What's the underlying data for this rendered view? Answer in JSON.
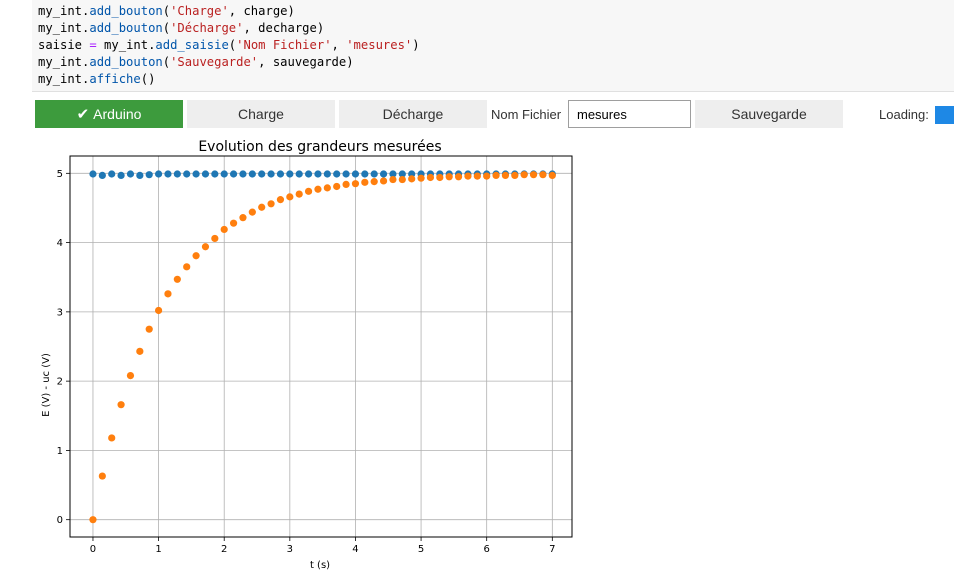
{
  "code": {
    "lines": [
      [
        {
          "t": "my_int."
        },
        {
          "t": "add_bouton",
          "c": "m"
        },
        {
          "t": "("
        },
        {
          "t": "'Charge'",
          "c": "s"
        },
        {
          "t": ", charge)"
        }
      ],
      [
        {
          "t": "my_int."
        },
        {
          "t": "add_bouton",
          "c": "m"
        },
        {
          "t": "("
        },
        {
          "t": "'Décharge'",
          "c": "s"
        },
        {
          "t": ", decharge)"
        }
      ],
      [
        {
          "t": "saisie "
        },
        {
          "t": "=",
          "c": "o"
        },
        {
          "t": " my_int."
        },
        {
          "t": "add_saisie",
          "c": "m"
        },
        {
          "t": "("
        },
        {
          "t": "'Nom Fichier'",
          "c": "s"
        },
        {
          "t": ", "
        },
        {
          "t": "'mesures'",
          "c": "s"
        },
        {
          "t": ")"
        }
      ],
      [
        {
          "t": "my_int."
        },
        {
          "t": "add_bouton",
          "c": "m"
        },
        {
          "t": "("
        },
        {
          "t": "'Sauvegarde'",
          "c": "s"
        },
        {
          "t": ", sauvegarde)"
        }
      ],
      [
        {
          "t": "my_int."
        },
        {
          "t": "affiche",
          "c": "m"
        },
        {
          "t": "()"
        }
      ]
    ]
  },
  "toolbar": {
    "arduino_label": "Arduino",
    "charge_label": "Charge",
    "decharge_label": "Décharge",
    "filename_label": "Nom Fichier",
    "filename_value": "mesures",
    "sauvegarde_label": "Sauvegarde",
    "loading_label": "Loading:"
  },
  "colors": {
    "green": "#3d9b3d",
    "series1": "#1f77b4",
    "series2": "#ff7f0e",
    "loading": "#1e88e5"
  },
  "chart_data": {
    "type": "scatter",
    "title": "Evolution des grandeurs mesurées",
    "xlabel": "t (s)",
    "ylabel": "E (V) - uc (V)",
    "xlim": [
      -0.35,
      7.3
    ],
    "ylim": [
      -0.25,
      5.25
    ],
    "xticks": [
      0,
      1,
      2,
      3,
      4,
      5,
      6,
      7
    ],
    "yticks": [
      0,
      1,
      2,
      3,
      4,
      5
    ],
    "grid": true,
    "series": [
      {
        "color": "#1f77b4",
        "x": [
          0,
          0.142857,
          0.285714,
          0.428571,
          0.571429,
          0.714286,
          0.857143,
          1,
          1.142857,
          1.285714,
          1.428571,
          1.571429,
          1.714286,
          1.857143,
          2,
          2.142857,
          2.285714,
          2.428571,
          2.571429,
          2.714286,
          2.857143,
          3,
          3.142857,
          3.285714,
          3.428571,
          3.571429,
          3.714286,
          3.857143,
          4,
          4.142857,
          4.285714,
          4.428571,
          4.571429,
          4.714286,
          4.857143,
          5,
          5.142857,
          5.285714,
          5.428571,
          5.571429,
          5.714286,
          5.857143,
          6,
          6.142857,
          6.285714,
          6.428571,
          6.571429,
          6.714286,
          6.857143,
          7
        ],
        "y": [
          4.99,
          4.97,
          4.99,
          4.97,
          4.99,
          4.97,
          4.98,
          4.99,
          4.99,
          4.99,
          4.99,
          4.99,
          4.99,
          4.99,
          4.99,
          4.99,
          4.99,
          4.99,
          4.99,
          4.99,
          4.99,
          4.99,
          4.99,
          4.99,
          4.99,
          4.99,
          4.99,
          4.99,
          4.99,
          4.99,
          4.99,
          4.99,
          4.99,
          4.99,
          4.99,
          4.99,
          4.99,
          4.99,
          4.99,
          4.99,
          4.99,
          4.99,
          4.99,
          4.99,
          4.99,
          4.99,
          4.99,
          4.99,
          4.99,
          4.99
        ]
      },
      {
        "color": "#ff7f0e",
        "x": [
          0,
          0.142857,
          0.285714,
          0.428571,
          0.571429,
          0.714286,
          0.857143,
          1,
          1.142857,
          1.285714,
          1.428571,
          1.571429,
          1.714286,
          1.857143,
          2,
          2.142857,
          2.285714,
          2.428571,
          2.571429,
          2.714286,
          2.857143,
          3,
          3.142857,
          3.285714,
          3.428571,
          3.571429,
          3.714286,
          3.857143,
          4,
          4.142857,
          4.285714,
          4.428571,
          4.571429,
          4.714286,
          4.857143,
          5,
          5.142857,
          5.285714,
          5.428571,
          5.571429,
          5.714286,
          5.857143,
          6,
          6.142857,
          6.285714,
          6.428571,
          6.571429,
          6.714286,
          6.857143,
          7
        ],
        "y": [
          0,
          0.63,
          1.18,
          1.66,
          2.08,
          2.43,
          2.75,
          3.02,
          3.26,
          3.47,
          3.65,
          3.81,
          3.94,
          4.06,
          4.19,
          4.28,
          4.36,
          4.44,
          4.51,
          4.56,
          4.62,
          4.66,
          4.7,
          4.74,
          4.77,
          4.79,
          4.81,
          4.84,
          4.85,
          4.87,
          4.88,
          4.89,
          4.91,
          4.91,
          4.92,
          4.93,
          4.94,
          4.94,
          4.95,
          4.95,
          4.96,
          4.96,
          4.96,
          4.97,
          4.97,
          4.97,
          4.98,
          4.98,
          4.98,
          4.97
        ]
      }
    ]
  }
}
